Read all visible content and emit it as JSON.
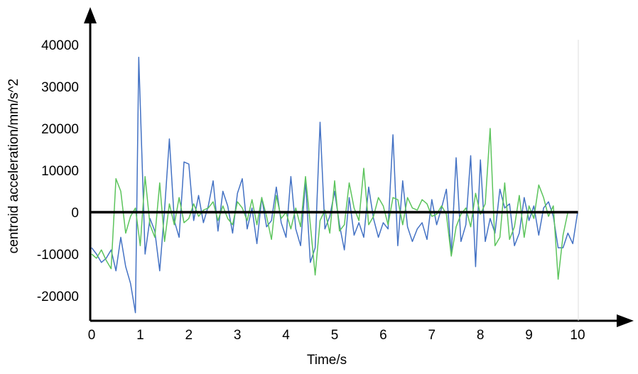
{
  "chart_data": {
    "type": "line",
    "title": "",
    "xlabel": "Time/s",
    "ylabel": "centroid acceleration/mm/s^2",
    "xlim": [
      0,
      10
    ],
    "ylim": [
      -25000,
      45000
    ],
    "xticks": [
      0,
      1,
      2,
      3,
      4,
      5,
      6,
      7,
      8,
      9,
      10
    ],
    "yticks": [
      40000,
      30000,
      20000,
      10000,
      0,
      -10000,
      -20000
    ],
    "x_tick_labels": [
      "0",
      "1",
      "2",
      "3",
      "4",
      "5",
      "6",
      "7",
      "8",
      "9",
      "10"
    ],
    "y_tick_labels": [
      "40000",
      "30000",
      "20000",
      "10000",
      "0",
      "-10000",
      "-20000"
    ],
    "grid": false,
    "legend": "none",
    "series": [
      {
        "color": "#4472c4",
        "x": [
          0,
          0.1,
          0.2,
          0.3,
          0.4,
          0.5,
          0.6,
          0.7,
          0.8,
          0.9,
          0.97,
          1.1,
          1.2,
          1.3,
          1.4,
          1.5,
          1.6,
          1.7,
          1.8,
          1.9,
          2.0,
          2.1,
          2.2,
          2.3,
          2.4,
          2.5,
          2.6,
          2.7,
          2.8,
          2.9,
          3.0,
          3.1,
          3.2,
          3.3,
          3.4,
          3.5,
          3.6,
          3.7,
          3.8,
          3.9,
          4.0,
          4.1,
          4.2,
          4.3,
          4.4,
          4.5,
          4.6,
          4.7,
          4.8,
          4.9,
          5.0,
          5.1,
          5.2,
          5.3,
          5.4,
          5.5,
          5.6,
          5.7,
          5.8,
          5.9,
          6.0,
          6.1,
          6.2,
          6.3,
          6.4,
          6.5,
          6.6,
          6.7,
          6.8,
          6.9,
          7.0,
          7.1,
          7.2,
          7.3,
          7.4,
          7.5,
          7.6,
          7.7,
          7.8,
          7.9,
          8.0,
          8.1,
          8.2,
          8.3,
          8.4,
          8.5,
          8.6,
          8.7,
          8.8,
          8.9,
          9.0,
          9.1,
          9.2,
          9.3,
          9.4,
          9.5,
          9.6,
          9.7,
          9.8,
          9.9,
          10.0
        ],
        "y": [
          -8500,
          -10000,
          -12000,
          -11000,
          -9000,
          -14000,
          -6000,
          -13000,
          -17000,
          -24000,
          37000,
          -10000,
          -1500,
          -4500,
          -14000,
          500,
          17500,
          -2000,
          -6000,
          12000,
          11500,
          -2000,
          4000,
          -2500,
          1500,
          7500,
          -4500,
          5000,
          1500,
          -5000,
          4500,
          8000,
          -4000,
          1000,
          -7500,
          3500,
          -3500,
          -2000,
          6000,
          -2500,
          -6000,
          8500,
          -4000,
          -8000,
          7500,
          -12000,
          -8500,
          21500,
          -4000,
          -1000,
          5000,
          -3000,
          -9000,
          3500,
          -5500,
          -2500,
          -6000,
          6000,
          -1500,
          -6000,
          -2500,
          -4000,
          18500,
          -8000,
          7500,
          -3500,
          -7000,
          -4000,
          -2500,
          -6500,
          3000,
          -3000,
          1000,
          5500,
          -10000,
          13000,
          -7000,
          -3000,
          13500,
          -13000,
          12500,
          -7000,
          -1500,
          -5000,
          5500,
          1000,
          2000,
          -8000,
          -5000,
          3500,
          -2000,
          1500,
          -5500,
          1000,
          2500,
          -1000,
          -8500,
          -8500,
          -5000,
          -7500,
          0
        ]
      },
      {
        "color": "#5cc45c",
        "x": [
          0,
          0.1,
          0.2,
          0.3,
          0.4,
          0.5,
          0.6,
          0.7,
          0.8,
          0.9,
          1.0,
          1.1,
          1.2,
          1.3,
          1.4,
          1.5,
          1.6,
          1.7,
          1.8,
          1.9,
          2.0,
          2.1,
          2.2,
          2.3,
          2.4,
          2.5,
          2.6,
          2.7,
          2.8,
          2.9,
          3.0,
          3.1,
          3.2,
          3.3,
          3.4,
          3.5,
          3.6,
          3.7,
          3.8,
          3.9,
          4.0,
          4.1,
          4.2,
          4.3,
          4.4,
          4.5,
          4.6,
          4.7,
          4.8,
          4.9,
          5.0,
          5.1,
          5.2,
          5.3,
          5.4,
          5.5,
          5.6,
          5.7,
          5.8,
          5.9,
          6.0,
          6.1,
          6.2,
          6.3,
          6.4,
          6.5,
          6.6,
          6.7,
          6.8,
          6.9,
          7.0,
          7.1,
          7.2,
          7.3,
          7.4,
          7.5,
          7.6,
          7.7,
          7.8,
          7.9,
          8.0,
          8.1,
          8.2,
          8.3,
          8.4,
          8.5,
          8.6,
          8.7,
          8.8,
          8.9,
          9.0,
          9.1,
          9.2,
          9.3,
          9.4,
          9.5,
          9.6,
          9.7,
          9.8,
          9.9,
          10.0
        ],
        "y": [
          -10000,
          -11000,
          -9000,
          -11500,
          -13500,
          8000,
          5000,
          -5000,
          -1000,
          1000,
          -8000,
          8500,
          -3000,
          -6000,
          7000,
          -7000,
          2000,
          -3000,
          3500,
          -2500,
          -1500,
          2000,
          -1000,
          500,
          1000,
          2500,
          -2000,
          1500,
          -1500,
          -3000,
          2500,
          1000,
          -2000,
          3000,
          -3000,
          3500,
          -1000,
          -6500,
          4000,
          -1500,
          0,
          -4000,
          1000,
          -3500,
          8500,
          -3000,
          -15000,
          -2000,
          500,
          -5000,
          7500,
          -4500,
          -3000,
          7000,
          1000,
          -2000,
          10500,
          -3000,
          -1000,
          3500,
          1500,
          -3000,
          3500,
          3000,
          -3000,
          3500,
          1000,
          500,
          3000,
          2000,
          -1000,
          -500,
          1500,
          -500,
          -10500,
          -3500,
          -500,
          1000,
          -3500,
          4500,
          -500,
          2000,
          20000,
          -8000,
          -6000,
          7000,
          -6500,
          -3500,
          4000,
          -6000,
          1500,
          -1500,
          6500,
          3500,
          -1000,
          1500,
          -16000,
          -5500,
          0,
          0,
          0
        ]
      }
    ]
  }
}
